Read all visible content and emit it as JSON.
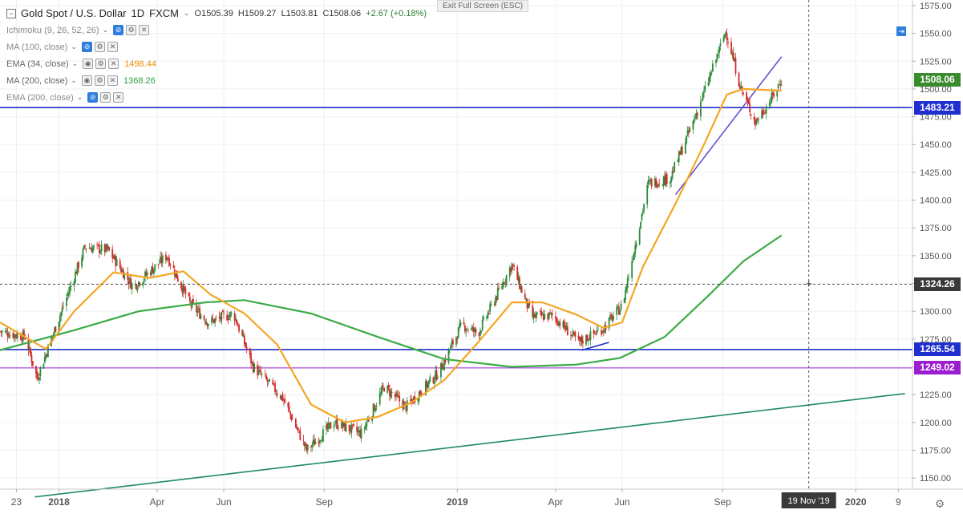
{
  "header": {
    "title": "Gold Spot / U.S. Dollar",
    "interval": "1D",
    "source": "FXCM",
    "open": "O1505.39",
    "high": "H1509.27",
    "low": "L1503.81",
    "close": "C1508.06",
    "change": "+2.67 (+0.18%)",
    "exit_full_screen": "Exit Full Screen (ESC)"
  },
  "indicators": [
    {
      "name": "Ichimoku (9, 26, 52, 26)",
      "value": "",
      "color": "#8a8a8a"
    },
    {
      "name": "MA (100, close)",
      "value": "",
      "color": "#8a8a8a"
    },
    {
      "name": "EMA (34, close)",
      "value": "1498.44",
      "color": "#f08c00"
    },
    {
      "name": "MA (200, close)",
      "value": "1368.26",
      "color": "#2e9e3e"
    },
    {
      "name": "EMA (200, close)",
      "value": "",
      "color": "#8a8a8a"
    }
  ],
  "price_tags": [
    {
      "label": "1508.06",
      "value": 1508.06,
      "color": "#3a8a2e"
    },
    {
      "label": "1483.21",
      "value": 1483.21,
      "color": "#1f2fd0"
    },
    {
      "label": "1324.26",
      "value": 1324.26,
      "color": "#3a3a3a"
    },
    {
      "label": "1265.54",
      "value": 1265.54,
      "color": "#1f2fd0"
    },
    {
      "label": "1249.02",
      "value": 1249.02,
      "color": "#9b1fd0"
    }
  ],
  "crosshair_date": "19 Nov '19",
  "colors": {
    "up": "#2e8b3a",
    "down": "#d42a2a",
    "ema34": "#f5a623",
    "ma200": "#3cab45",
    "support": "#1f2fd0",
    "purple_line": "#9b1fd0",
    "trendline": "#1e8a6a",
    "uptrend": "#6a4fd1"
  },
  "chart_data": {
    "type": "candlestick",
    "symbol": "Gold Spot / U.S. Dollar",
    "ylim": [
      1140,
      1580
    ],
    "y_ticks": [
      1150,
      1175,
      1200,
      1225,
      1250,
      1275,
      1300,
      1325,
      1350,
      1375,
      1400,
      1425,
      1450,
      1475,
      1500,
      1525,
      1550,
      1575
    ],
    "x_ticks": [
      {
        "label": "23",
        "date": "2017-11-23"
      },
      {
        "label": "2018",
        "date": "2018-01-01"
      },
      {
        "label": "Apr",
        "date": "2018-04-01"
      },
      {
        "label": "Jun",
        "date": "2018-06-01"
      },
      {
        "label": "Sep",
        "date": "2018-09-01"
      },
      {
        "label": "2019",
        "date": "2019-01-01"
      },
      {
        "label": "Apr",
        "date": "2019-04-01"
      },
      {
        "label": "Jun",
        "date": "2019-06-01"
      },
      {
        "label": "Sep",
        "date": "2019-09-01"
      },
      {
        "label": "2020",
        "date": "2020-01-01"
      },
      {
        "label": "9",
        "date": "2020-02-09"
      }
    ],
    "xlim": [
      "2017-11-08",
      "2020-02-22"
    ],
    "price_path": [
      [
        "2017-11-08",
        1282
      ],
      [
        "2017-12-01",
        1277
      ],
      [
        "2017-12-12",
        1240
      ],
      [
        "2018-01-25",
        1358
      ],
      [
        "2018-02-15",
        1355
      ],
      [
        "2018-03-10",
        1322
      ],
      [
        "2018-04-10",
        1350
      ],
      [
        "2018-05-01",
        1307
      ],
      [
        "2018-05-18",
        1290
      ],
      [
        "2018-06-10",
        1298
      ],
      [
        "2018-06-28",
        1250
      ],
      [
        "2018-07-25",
        1222
      ],
      [
        "2018-08-16",
        1175
      ],
      [
        "2018-09-10",
        1200
      ],
      [
        "2018-10-05",
        1190
      ],
      [
        "2018-10-26",
        1232
      ],
      [
        "2018-11-15",
        1214
      ],
      [
        "2018-12-15",
        1245
      ],
      [
        "2019-01-05",
        1288
      ],
      [
        "2019-01-20",
        1280
      ],
      [
        "2019-02-20",
        1342
      ],
      [
        "2019-03-10",
        1295
      ],
      [
        "2019-03-30",
        1296
      ],
      [
        "2019-04-22",
        1272
      ],
      [
        "2019-05-15",
        1285
      ],
      [
        "2019-06-01",
        1305
      ],
      [
        "2019-06-25",
        1415
      ],
      [
        "2019-07-15",
        1420
      ],
      [
        "2019-08-05",
        1470
      ],
      [
        "2019-08-20",
        1510
      ],
      [
        "2019-09-04",
        1552
      ],
      [
        "2019-09-18",
        1500
      ],
      [
        "2019-10-01",
        1470
      ],
      [
        "2019-10-15",
        1490
      ],
      [
        "2019-10-25",
        1508
      ]
    ],
    "ema34": [
      [
        "2017-11-08",
        1290
      ],
      [
        "2017-12-20",
        1266
      ],
      [
        "2018-01-15",
        1300
      ],
      [
        "2018-02-20",
        1335
      ],
      [
        "2018-03-25",
        1330
      ],
      [
        "2018-04-25",
        1336
      ],
      [
        "2018-05-20",
        1315
      ],
      [
        "2018-06-20",
        1298
      ],
      [
        "2018-07-20",
        1270
      ],
      [
        "2018-08-20",
        1216
      ],
      [
        "2018-09-20",
        1200
      ],
      [
        "2018-10-20",
        1205
      ],
      [
        "2018-11-20",
        1218
      ],
      [
        "2018-12-20",
        1238
      ],
      [
        "2019-01-20",
        1272
      ],
      [
        "2019-02-20",
        1308
      ],
      [
        "2019-03-20",
        1308
      ],
      [
        "2019-04-20",
        1297
      ],
      [
        "2019-05-15",
        1285
      ],
      [
        "2019-06-01",
        1290
      ],
      [
        "2019-06-20",
        1340
      ],
      [
        "2019-07-20",
        1397
      ],
      [
        "2019-08-15",
        1450
      ],
      [
        "2019-09-05",
        1495
      ],
      [
        "2019-09-20",
        1500
      ],
      [
        "2019-10-25",
        1498.44
      ]
    ],
    "ma200": [
      [
        "2017-11-08",
        1265
      ],
      [
        "2018-01-15",
        1283
      ],
      [
        "2018-03-15",
        1300
      ],
      [
        "2018-05-15",
        1308
      ],
      [
        "2018-06-20",
        1310
      ],
      [
        "2018-08-20",
        1298
      ],
      [
        "2018-10-20",
        1277
      ],
      [
        "2018-12-20",
        1257
      ],
      [
        "2019-02-20",
        1250
      ],
      [
        "2019-04-20",
        1252
      ],
      [
        "2019-05-30",
        1258
      ],
      [
        "2019-07-10",
        1277
      ],
      [
        "2019-08-20",
        1315
      ],
      [
        "2019-09-20",
        1345
      ],
      [
        "2019-10-25",
        1368.26
      ]
    ],
    "horizontal_lines": [
      1483.21,
      1265.54,
      1249.02
    ],
    "crosshair": {
      "date": "2019-11-19",
      "price": 1324.26
    },
    "trendlines": [
      {
        "from": [
          "2017-12-10",
          1133
        ],
        "to": [
          "2020-02-15",
          1226
        ]
      },
      {
        "from": [
          "2019-07-20",
          1405
        ],
        "to": [
          "2019-10-25",
          1529
        ]
      },
      {
        "from": [
          "2019-04-25",
          1265
        ],
        "to": [
          "2019-05-20",
          1272
        ]
      }
    ]
  }
}
